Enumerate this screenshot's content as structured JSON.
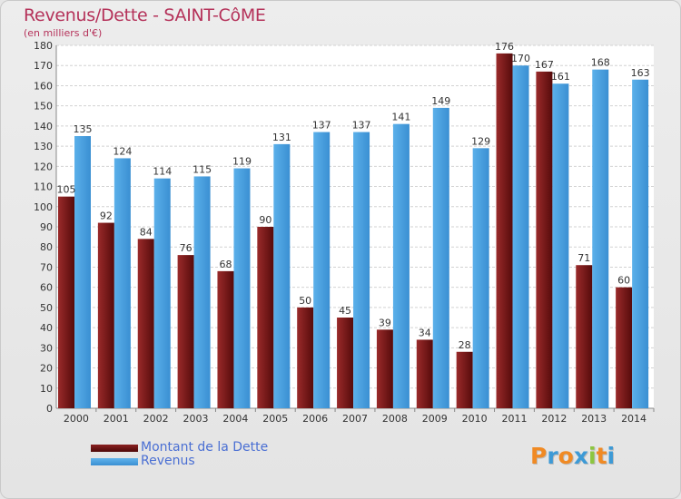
{
  "chart_data": {
    "type": "bar",
    "title": "Revenus/Dette - SAINT-CôME",
    "subtitle": "(en milliers d'€)",
    "categories": [
      "2000",
      "2001",
      "2002",
      "2003",
      "2004",
      "2005",
      "2006",
      "2007",
      "2008",
      "2009",
      "2010",
      "2011",
      "2012",
      "2013",
      "2014"
    ],
    "series": [
      {
        "name": "Montant de la Dette",
        "color": "#7a1a1a",
        "values": [
          105,
          92,
          84,
          76,
          68,
          90,
          50,
          45,
          39,
          34,
          28,
          176,
          167,
          71,
          60
        ]
      },
      {
        "name": "Revenus",
        "color": "#4a9fe0",
        "values": [
          135,
          124,
          114,
          115,
          119,
          131,
          137,
          137,
          141,
          149,
          129,
          170,
          161,
          168,
          163
        ]
      }
    ],
    "ylim": [
      0,
      180
    ],
    "ytick_step": 10,
    "grid": true,
    "legend": "bottom-left"
  },
  "logo": {
    "letters": [
      "P",
      "r",
      "o",
      "x",
      "i",
      "t",
      "i"
    ],
    "colors": [
      "#f08a24",
      "#3d9ad6",
      "#f08a24",
      "#3d9ad6",
      "#8cc63f",
      "#f08a24",
      "#3d9ad6"
    ]
  }
}
